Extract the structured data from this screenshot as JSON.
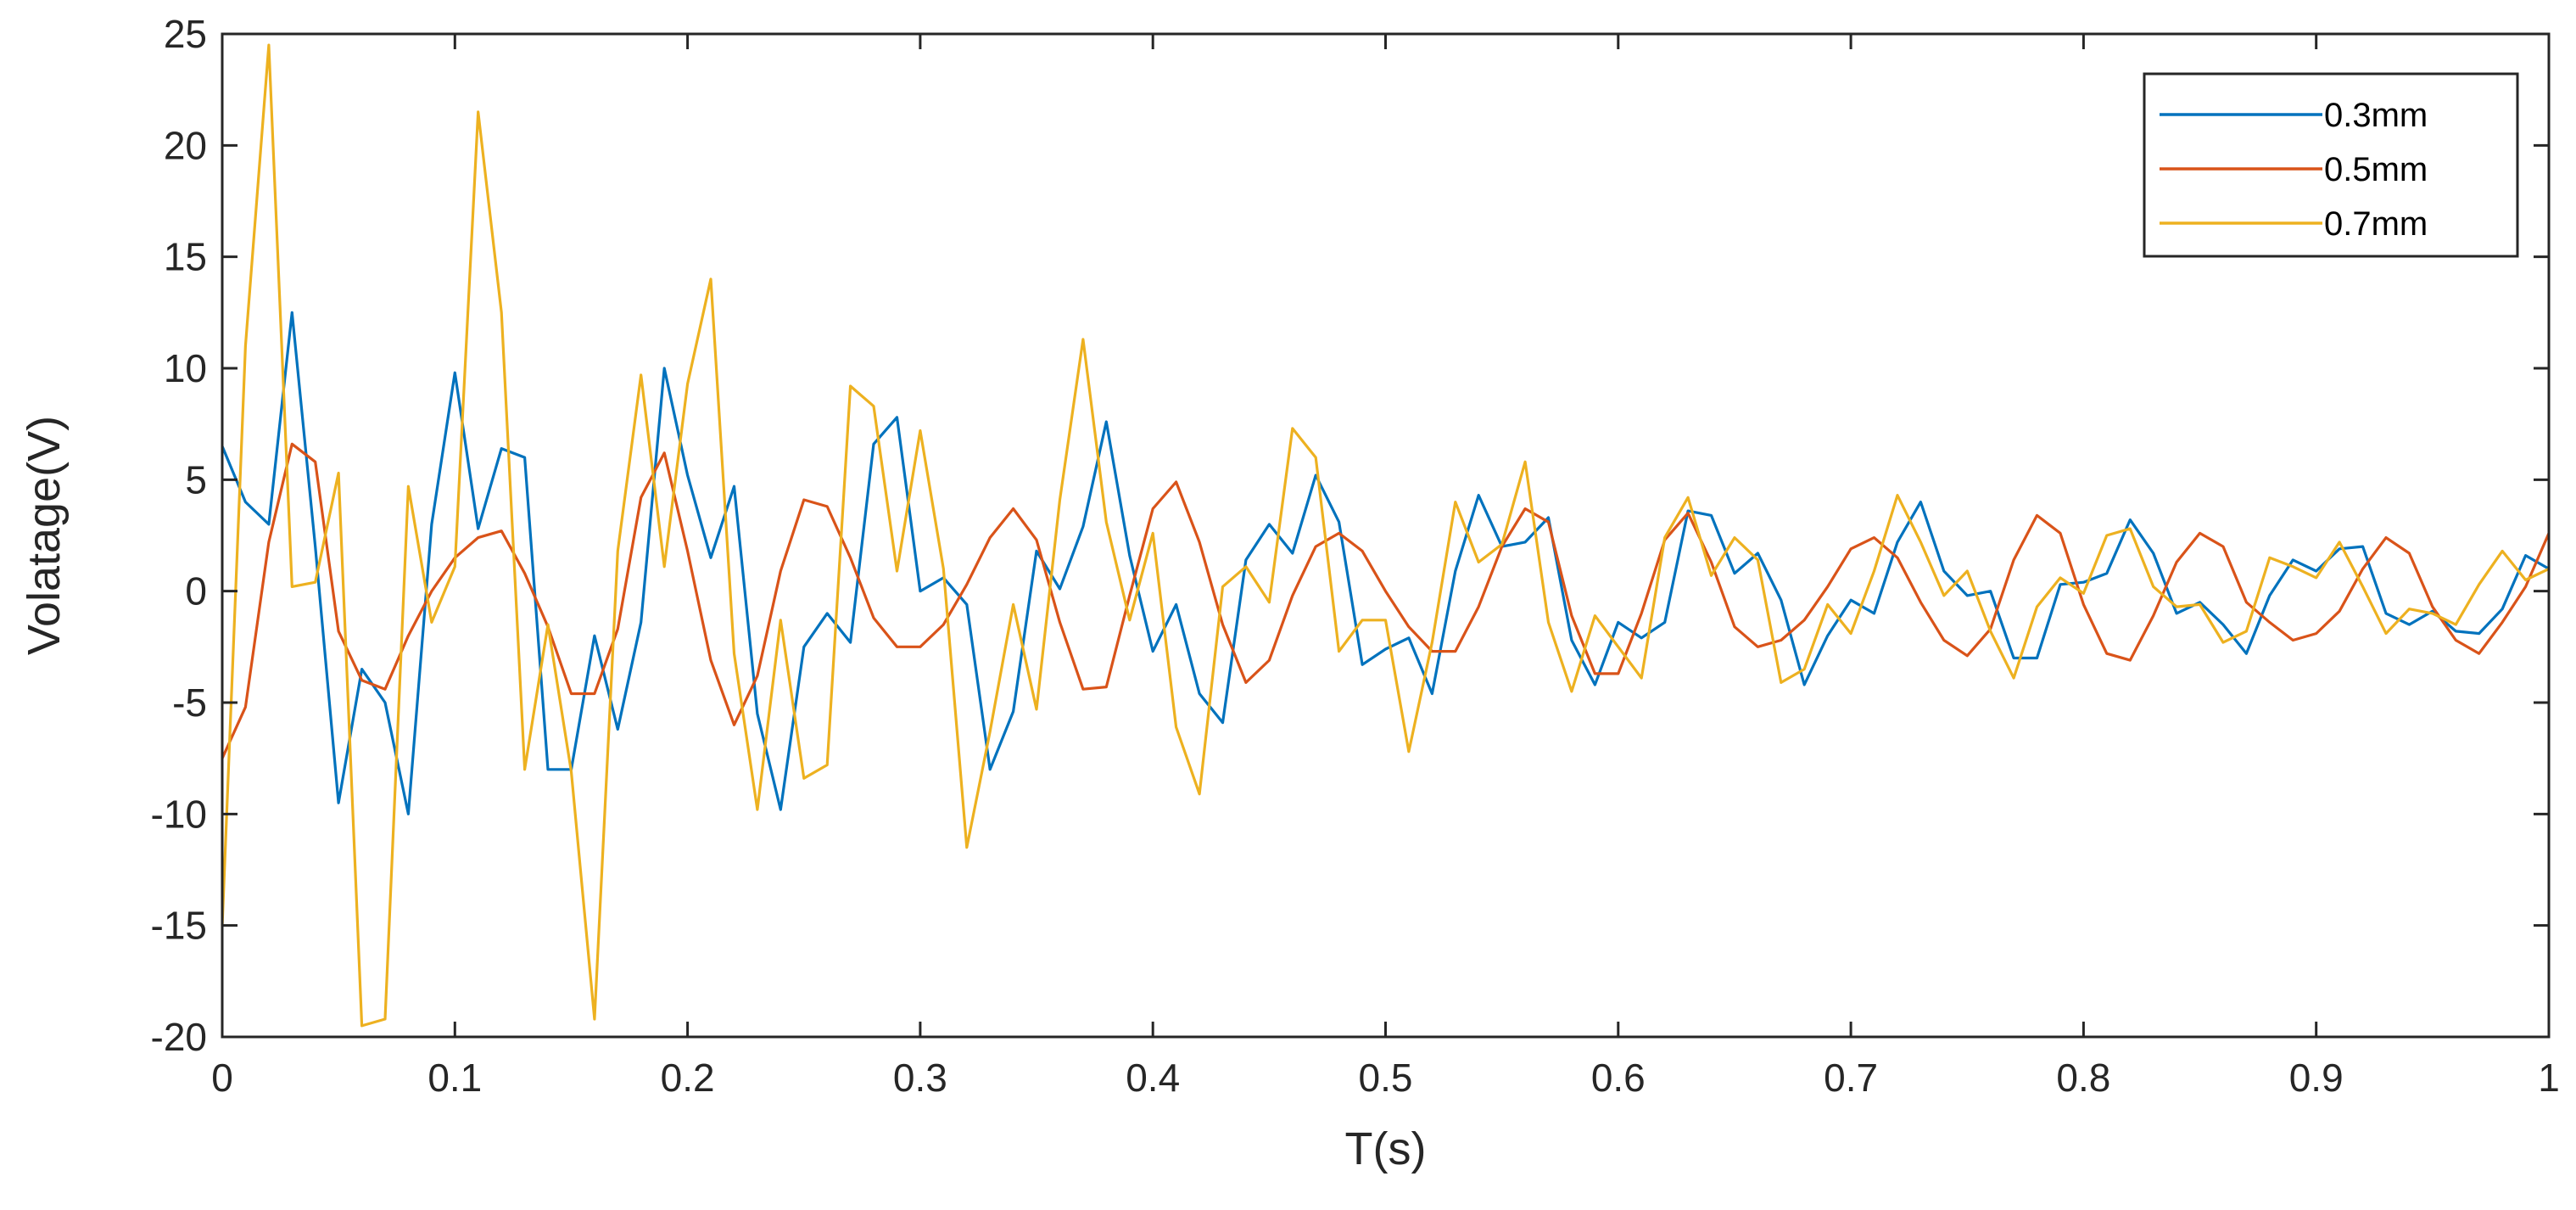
{
  "chart_data": {
    "type": "line",
    "title": "",
    "xlabel": "T(s)",
    "ylabel": "Volatage(V)",
    "xlim": [
      0,
      1
    ],
    "ylim": [
      -20,
      25
    ],
    "grid": false,
    "legend_position": "top-right",
    "x_ticks": [
      0,
      0.1,
      0.2,
      0.3,
      0.4,
      0.5,
      0.6,
      0.7,
      0.8,
      0.9,
      1
    ],
    "x_tick_labels": [
      "0",
      "0.1",
      "0.2",
      "0.3",
      "0.4",
      "0.5",
      "0.6",
      "0.7",
      "0.8",
      "0.9",
      "1"
    ],
    "y_ticks": [
      25,
      20,
      15,
      10,
      5,
      0,
      -5,
      -10,
      -15,
      -20
    ],
    "y_tick_labels": [
      "25",
      "20",
      "15",
      "10",
      "5",
      "0",
      "-5",
      "-10",
      "-15",
      "-20"
    ],
    "x": [
      0,
      0.01,
      0.02,
      0.03,
      0.04,
      0.05,
      0.06,
      0.07,
      0.08,
      0.09,
      0.1,
      0.11,
      0.12,
      0.13,
      0.14,
      0.15,
      0.16,
      0.17,
      0.18,
      0.19,
      0.2,
      0.21,
      0.22,
      0.23,
      0.24,
      0.25,
      0.26,
      0.27,
      0.28,
      0.29,
      0.3,
      0.31,
      0.32,
      0.33,
      0.34,
      0.35,
      0.36,
      0.37,
      0.38,
      0.39,
      0.4,
      0.41,
      0.42,
      0.43,
      0.44,
      0.45,
      0.46,
      0.47,
      0.48,
      0.49,
      0.5,
      0.51,
      0.52,
      0.53,
      0.54,
      0.55,
      0.56,
      0.57,
      0.58,
      0.59,
      0.6,
      0.61,
      0.62,
      0.63,
      0.64,
      0.65,
      0.66,
      0.67,
      0.68,
      0.69,
      0.7,
      0.71,
      0.72,
      0.73,
      0.74,
      0.75,
      0.76,
      0.77,
      0.78,
      0.79,
      0.8,
      0.81,
      0.82,
      0.83,
      0.84,
      0.85,
      0.86,
      0.87,
      0.88,
      0.89,
      0.9,
      0.91,
      0.92,
      0.93,
      0.94,
      0.95,
      0.96,
      0.97,
      0.98,
      0.99,
      1
    ],
    "series": [
      {
        "name": "0.3mm",
        "color": "#0072BD",
        "values": [
          6.5,
          4,
          3,
          12.5,
          2,
          -9.5,
          -3.5,
          -5,
          -10,
          3,
          9.8,
          2.8,
          6.4,
          6,
          -8,
          -8,
          -2,
          -6.2,
          -1.4,
          10,
          5.2,
          1.5,
          4.7,
          -5.5,
          -9.8,
          -2.5,
          -1,
          -2.3,
          6.6,
          7.8,
          0,
          0.6,
          -0.6,
          -8,
          -5.4,
          1.8,
          0.1,
          2.9,
          7.6,
          1.6,
          -2.7,
          -0.6,
          -4.6,
          -5.9,
          1.4,
          3,
          1.7,
          5.2,
          3.1,
          -3.3,
          -2.6,
          -2.1,
          -4.6,
          0.9,
          4.3,
          2,
          2.2,
          3.3,
          -2.2,
          -4.2,
          -1.4,
          -2.1,
          -1.4,
          3.6,
          3.4,
          0.8,
          1.7,
          -0.4,
          -4.2,
          -2,
          -0.4,
          -1,
          2.2,
          4,
          0.9,
          -0.2,
          0,
          -3,
          -3,
          0.3,
          0.4,
          0.8,
          3.2,
          1.7,
          -1,
          -0.5,
          -1.5,
          -2.8,
          -0.2,
          1.4,
          0.9,
          1.9,
          2,
          -1,
          -1.5,
          -0.9,
          -1.8,
          -1.9,
          -0.8,
          1.6,
          1
        ]
      },
      {
        "name": "0.5mm",
        "color": "#D95319",
        "values": [
          -7.5,
          -5.2,
          2.2,
          6.6,
          5.8,
          -1.8,
          -4,
          -4.4,
          -2,
          0,
          1.5,
          2.4,
          2.7,
          0.8,
          -1.6,
          -4.6,
          -4.6,
          -1.7,
          4.2,
          6.2,
          1.8,
          -3.1,
          -6,
          -3.8,
          0.9,
          4.1,
          3.8,
          1.5,
          -1.2,
          -2.5,
          -2.5,
          -1.5,
          0.3,
          2.4,
          3.7,
          2.3,
          -1.4,
          -4.4,
          -4.3,
          -0.2,
          3.7,
          4.9,
          2.2,
          -1.5,
          -4.1,
          -3.1,
          -0.2,
          2,
          2.6,
          1.8,
          0,
          -1.6,
          -2.7,
          -2.7,
          -0.7,
          2,
          3.7,
          3.1,
          -1.1,
          -3.7,
          -3.7,
          -1,
          2.3,
          3.5,
          1.3,
          -1.6,
          -2.5,
          -2.2,
          -1.3,
          0.2,
          1.9,
          2.4,
          1.5,
          -0.5,
          -2.2,
          -2.9,
          -1.7,
          1.4,
          3.4,
          2.6,
          -0.6,
          -2.8,
          -3.1,
          -1.1,
          1.3,
          2.6,
          2,
          -0.5,
          -1.4,
          -2.2,
          -1.9,
          -0.9,
          1,
          2.4,
          1.7,
          -0.7,
          -2.2,
          -2.8,
          -1.4,
          0.2,
          2.6
        ]
      },
      {
        "name": "0.7mm",
        "color": "#EDB120",
        "values": [
          -15,
          11,
          24.5,
          0.2,
          0.4,
          5.3,
          -19.5,
          -19.2,
          4.7,
          -1.4,
          1.1,
          21.5,
          12.5,
          -8,
          -1.5,
          -8.1,
          -19.2,
          1.8,
          9.7,
          1.1,
          9.3,
          14,
          -2.8,
          -9.8,
          -1.3,
          -8.4,
          -7.8,
          9.2,
          8.3,
          0.9,
          7.2,
          1,
          -11.5,
          -6.3,
          -0.6,
          -5.3,
          4.1,
          11.3,
          3.1,
          -1.3,
          2.6,
          -6.1,
          -9.1,
          0.2,
          1.1,
          -0.5,
          7.3,
          6,
          -2.7,
          -1.3,
          -1.3,
          -7.2,
          -2.3,
          4,
          1.3,
          2.1,
          5.8,
          -1.4,
          -4.5,
          -1.1,
          -2.5,
          -3.9,
          2.4,
          4.2,
          0.7,
          2.4,
          1.4,
          -4.1,
          -3.5,
          -0.6,
          -1.9,
          0.9,
          4.3,
          2.2,
          -0.2,
          0.9,
          -1.8,
          -3.9,
          -0.7,
          0.6,
          -0.1,
          2.5,
          2.8,
          0.2,
          -0.7,
          -0.6,
          -2.3,
          -1.8,
          1.5,
          1.1,
          0.6,
          2.2,
          0.2,
          -1.9,
          -0.8,
          -1,
          -1.5,
          0.3,
          1.8,
          0.5,
          1
        ]
      }
    ]
  }
}
